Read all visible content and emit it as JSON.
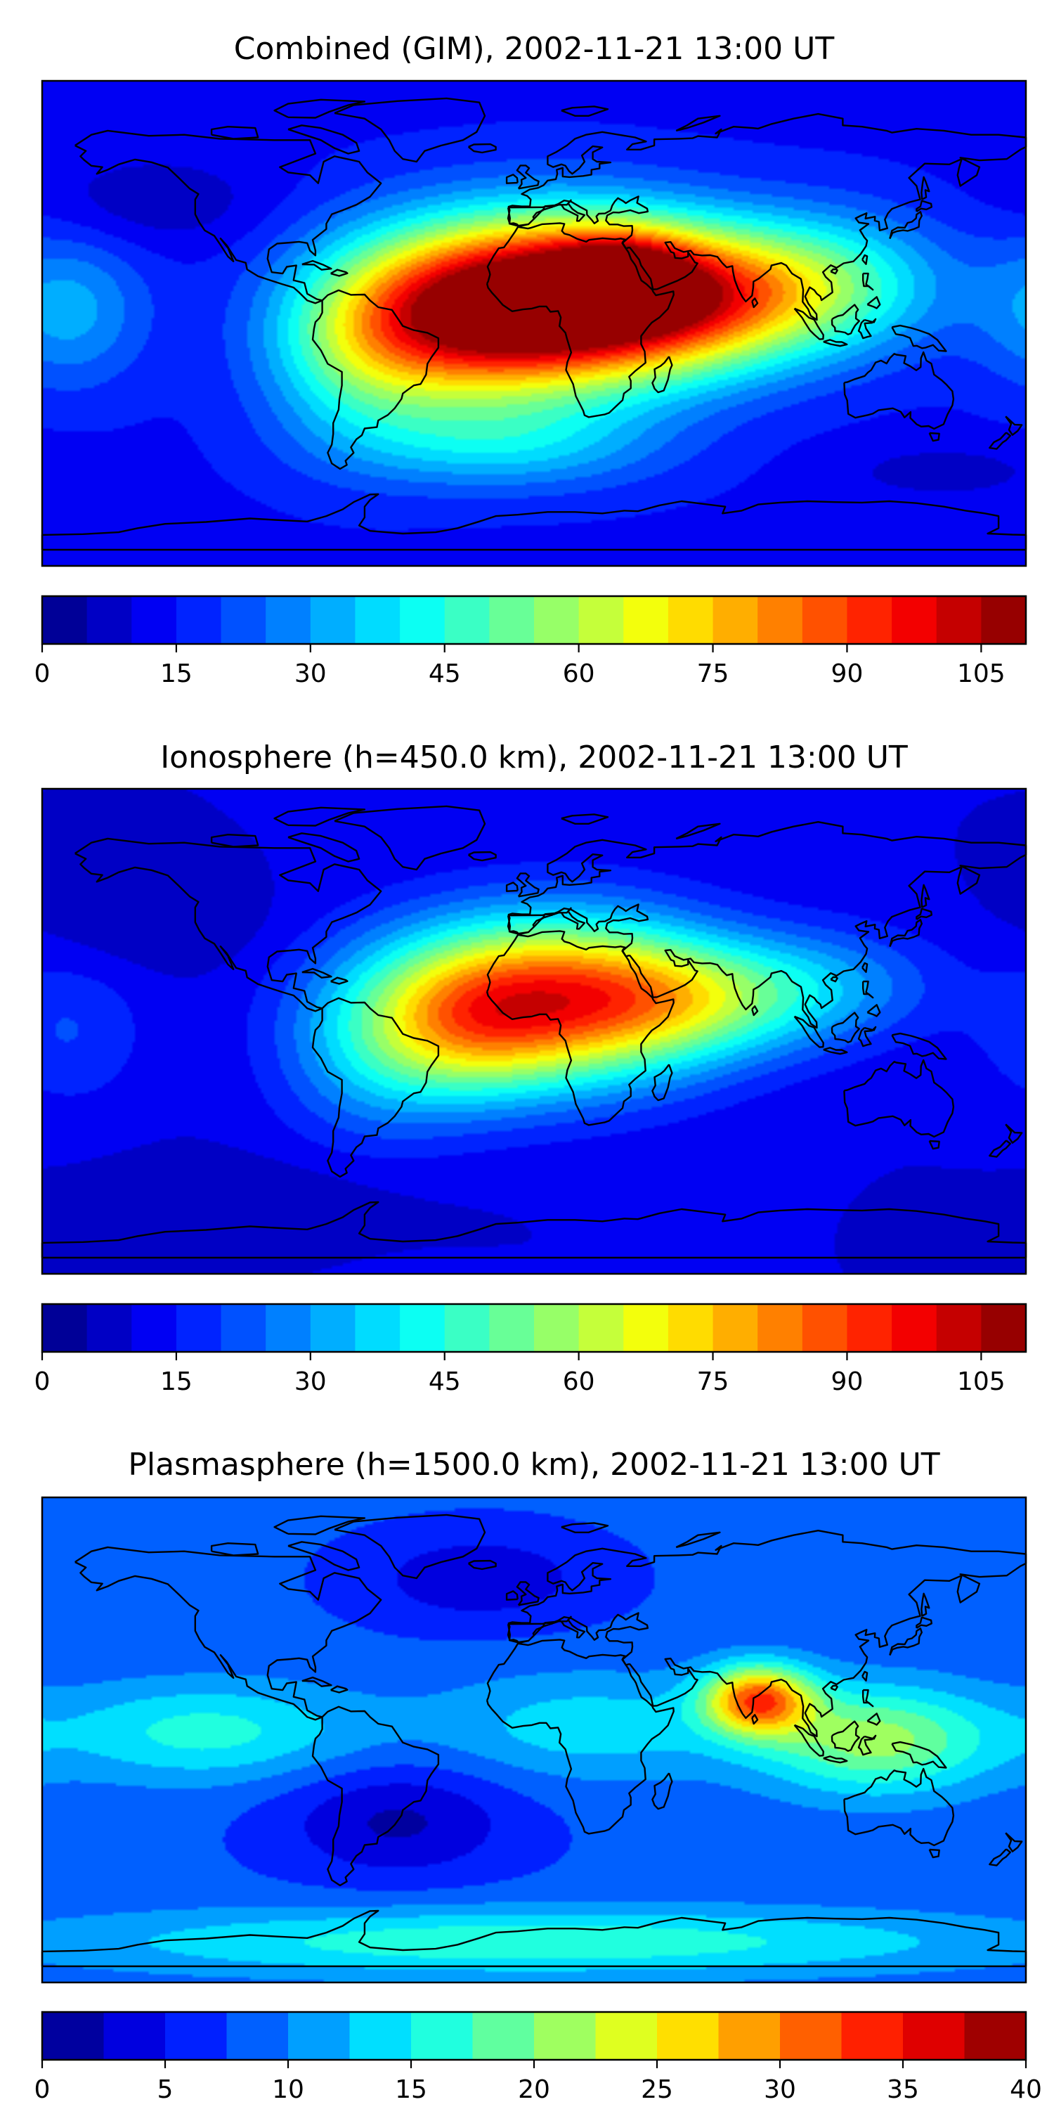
{
  "chart_data": [
    {
      "type": "heatmap",
      "title": "Combined (GIM), 2002-11-21 13:00 UT",
      "map": "world coastlines, equirectangular, lon -180..180, lat -90..90",
      "colormap": "jet",
      "colorbar": {
        "boundaries": [
          0,
          5,
          10,
          15,
          20,
          25,
          30,
          35,
          40,
          45,
          50,
          55,
          60,
          65,
          70,
          75,
          80,
          85,
          90,
          95,
          100,
          105,
          110
        ],
        "ticks": [
          0,
          15,
          30,
          45,
          60,
          75,
          90,
          105
        ],
        "tick_labels": [
          "0",
          "15",
          "30",
          "45",
          "60",
          "75",
          "90",
          "105"
        ]
      },
      "field": {
        "base": 14,
        "blobs": [
          {
            "lon": 10,
            "lat": 8,
            "value": 94,
            "sx": 40,
            "sy": 22
          },
          {
            "lon": 32,
            "lat": 18,
            "value": 30,
            "sx": 16,
            "sy": 10
          },
          {
            "lon": 60,
            "lat": 10,
            "value": 50,
            "sx": 35,
            "sy": 18
          },
          {
            "lon": -30,
            "lat": 2,
            "value": 42,
            "sx": 30,
            "sy": 22
          },
          {
            "lon": -65,
            "lat": -8,
            "value": 28,
            "sx": 25,
            "sy": 25
          },
          {
            "lon": 110,
            "lat": 15,
            "value": 26,
            "sx": 30,
            "sy": 18
          },
          {
            "lon": -10,
            "lat": -45,
            "value": 20,
            "sx": 40,
            "sy": 12
          },
          {
            "lon": -170,
            "lat": 5,
            "value": 18,
            "sx": 20,
            "sy": 20
          },
          {
            "lon": -140,
            "lat": 45,
            "value": -8,
            "sx": 30,
            "sy": 12
          },
          {
            "lon": 150,
            "lat": -55,
            "value": -6,
            "sx": 30,
            "sy": 8
          }
        ]
      }
    },
    {
      "type": "heatmap",
      "title": "Ionosphere  (h=450.0 km), 2002-11-21 13:00 UT",
      "map": "world coastlines, equirectangular, lon -180..180, lat -90..90",
      "colormap": "jet",
      "colorbar": {
        "boundaries": [
          0,
          5,
          10,
          15,
          20,
          25,
          30,
          35,
          40,
          45,
          50,
          55,
          60,
          65,
          70,
          75,
          80,
          85,
          90,
          95,
          100,
          105,
          110
        ],
        "ticks": [
          0,
          15,
          30,
          45,
          60,
          75,
          90,
          105
        ],
        "tick_labels": [
          "0",
          "15",
          "30",
          "45",
          "60",
          "75",
          "90",
          "105"
        ]
      },
      "field": {
        "base": 10,
        "blobs": [
          {
            "lon": 10,
            "lat": 12,
            "value": 70,
            "sx": 40,
            "sy": 22
          },
          {
            "lon": -25,
            "lat": 3,
            "value": 30,
            "sx": 25,
            "sy": 20
          },
          {
            "lon": 60,
            "lat": 12,
            "value": 28,
            "sx": 35,
            "sy": 15
          },
          {
            "lon": -60,
            "lat": -5,
            "value": 20,
            "sx": 25,
            "sy": 25
          },
          {
            "lon": 110,
            "lat": 18,
            "value": 14,
            "sx": 30,
            "sy": 15
          },
          {
            "lon": -170,
            "lat": 0,
            "value": 10,
            "sx": 20,
            "sy": 20
          },
          {
            "lon": -140,
            "lat": 40,
            "value": -5,
            "sx": 30,
            "sy": 12
          },
          {
            "lon": -100,
            "lat": -60,
            "value": -4,
            "sx": 40,
            "sy": 10
          }
        ]
      }
    },
    {
      "type": "heatmap",
      "title": "Plasmasphere (h=1500.0 km), 2002-11-21 13:00 UT",
      "map": "world coastlines, equirectangular, lon -180..180, lat -90..90",
      "colormap": "jet",
      "colorbar": {
        "boundaries": [
          0,
          2.5,
          5,
          7.5,
          10,
          12.5,
          15,
          17.5,
          20,
          22.5,
          25,
          27.5,
          30,
          32.5,
          35,
          37.5,
          40
        ],
        "ticks": [
          0,
          5,
          10,
          15,
          20,
          25,
          30,
          35,
          40
        ],
        "tick_labels": [
          "0",
          "5",
          "10",
          "15",
          "20",
          "25",
          "30",
          "35",
          "40"
        ]
      },
      "field": {
        "base": 8,
        "blobs": [
          {
            "lon": 82,
            "lat": 15,
            "value": 22,
            "sx": 14,
            "sy": 9
          },
          {
            "lon": 125,
            "lat": 0,
            "value": 13,
            "sx": 30,
            "sy": 14
          },
          {
            "lon": -120,
            "lat": 3,
            "value": 8,
            "sx": 40,
            "sy": 13
          },
          {
            "lon": 0,
            "lat": -75,
            "value": 9,
            "sx": 120,
            "sy": 9
          },
          {
            "lon": 20,
            "lat": 5,
            "value": 6,
            "sx": 40,
            "sy": 14
          },
          {
            "lon": -50,
            "lat": -30,
            "value": -6,
            "sx": 30,
            "sy": 15
          },
          {
            "lon": -20,
            "lat": 60,
            "value": -5,
            "sx": 30,
            "sy": 12
          }
        ]
      }
    }
  ]
}
